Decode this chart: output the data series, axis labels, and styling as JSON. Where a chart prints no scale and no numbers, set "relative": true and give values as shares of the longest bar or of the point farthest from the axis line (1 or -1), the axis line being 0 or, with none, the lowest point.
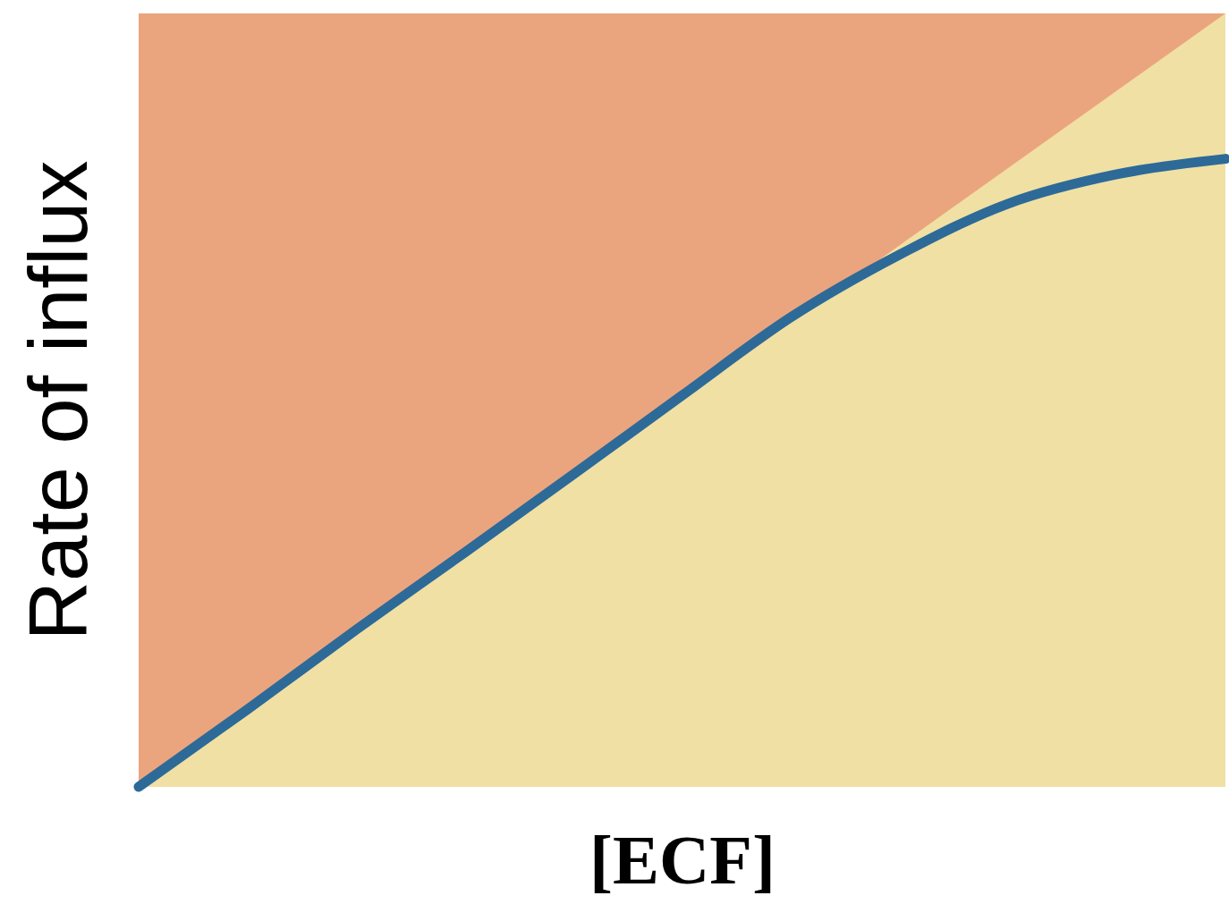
{
  "chart_data": {
    "type": "line",
    "relative": true,
    "xlabel": "[ECF]",
    "ylabel": "Rate of influx",
    "categories": [
      null,
      null,
      null,
      null,
      null,
      null,
      null,
      null,
      null,
      null,
      null
    ],
    "series": [
      {
        "type": "area",
        "color": "#f0e0a4",
        "values": [
          0,
          0.1,
          0.2,
          0.3,
          0.4,
          0.5,
          0.6,
          0.7,
          0.8,
          0.9,
          1
        ]
      },
      {
        "type": "line",
        "color": "#2d6a98",
        "values": [
          0,
          0.1,
          0.203,
          0.303,
          0.404,
          0.506,
          0.607,
          0.688,
          0.754,
          0.792,
          0.812
        ]
      }
    ]
  }
}
